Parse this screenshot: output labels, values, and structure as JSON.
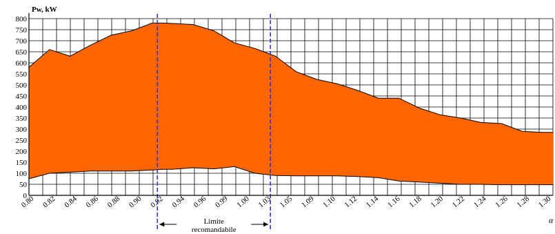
{
  "chart_data": {
    "type": "area",
    "ylabel": "Pw, kW",
    "xlabel": "α",
    "ylim": [
      0,
      800
    ],
    "yticks": [
      0,
      50,
      100,
      150,
      200,
      250,
      300,
      350,
      400,
      450,
      500,
      550,
      600,
      650,
      700,
      750,
      800
    ],
    "xlim": [
      0.8,
      1.31
    ],
    "xtick_labels": [
      "0.80",
      "0.82",
      "0.84",
      "0.86",
      "0.88",
      "0.90",
      "0.92",
      "0.94",
      "0.96",
      "0.99",
      "1.00",
      "1.03",
      "1.05",
      "1.09",
      "1.10",
      "1.12",
      "1.14",
      "1.16",
      "1.18",
      "1.20",
      "1.22",
      "1.24",
      "1.26",
      "1.28",
      "1.30"
    ],
    "grid": true,
    "series": [
      {
        "name": "",
        "x": [
          0.8,
          0.82,
          0.84,
          0.86,
          0.88,
          0.9,
          0.92,
          0.93,
          0.94,
          0.96,
          0.98,
          1.0,
          1.02,
          1.04,
          1.06,
          1.08,
          1.1,
          1.12,
          1.14,
          1.16,
          1.18,
          1.2,
          1.22,
          1.24,
          1.26,
          1.28,
          1.3,
          1.31
        ],
        "upper": [
          580,
          660,
          630,
          680,
          725,
          745,
          780,
          780,
          778,
          773,
          745,
          690,
          665,
          630,
          560,
          525,
          505,
          475,
          440,
          440,
          395,
          365,
          350,
          330,
          325,
          290,
          285,
          285
        ],
        "lower": [
          75,
          100,
          105,
          110,
          110,
          110,
          115,
          118,
          118,
          125,
          120,
          130,
          100,
          90,
          88,
          88,
          88,
          85,
          80,
          65,
          60,
          55,
          50,
          50,
          48,
          48,
          48,
          48
        ]
      }
    ],
    "colors": {
      "fill": "#ff6600",
      "line": "#000000",
      "grid": "#000000",
      "limit": "#3333cc"
    },
    "reference_lines": {
      "x": [
        0.925,
        1.035
      ]
    },
    "annotation": {
      "line1": "Limite",
      "line2": "recomandabile"
    }
  }
}
